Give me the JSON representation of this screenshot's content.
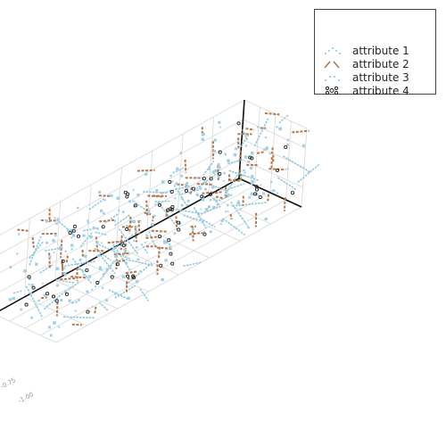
{
  "chart_data": {
    "type": "scatter",
    "projection": "3d",
    "title": "",
    "xlabel": "",
    "ylabel": "",
    "zlabel": "",
    "xlim": [
      -1.0,
      1.0
    ],
    "ylim": [
      -1.0,
      1.0
    ],
    "zlim": [
      -1.0,
      1.0
    ],
    "grid": true,
    "visible_tick_labels": [
      "-0.75",
      "-1.00"
    ],
    "legend_position": "top-right",
    "colors": {
      "attribute_1": "#8ec9df",
      "attribute_2": "#b5764a",
      "attribute_3": "#9fd0e8",
      "attribute_4": "#222222",
      "axis": "#111111",
      "grid": "#d8d8d8",
      "tick_text": "#999999"
    },
    "series": [
      {
        "name": "attribute 1",
        "marker": "dotted",
        "color": "#8ec9df"
      },
      {
        "name": "attribute 2",
        "marker": "dashed",
        "color": "#b5764a"
      },
      {
        "name": "attribute 3",
        "marker": "square",
        "color": "#9fd0e8"
      },
      {
        "name": "attribute 4",
        "marker": "open-circle",
        "color": "#222222"
      }
    ]
  }
}
